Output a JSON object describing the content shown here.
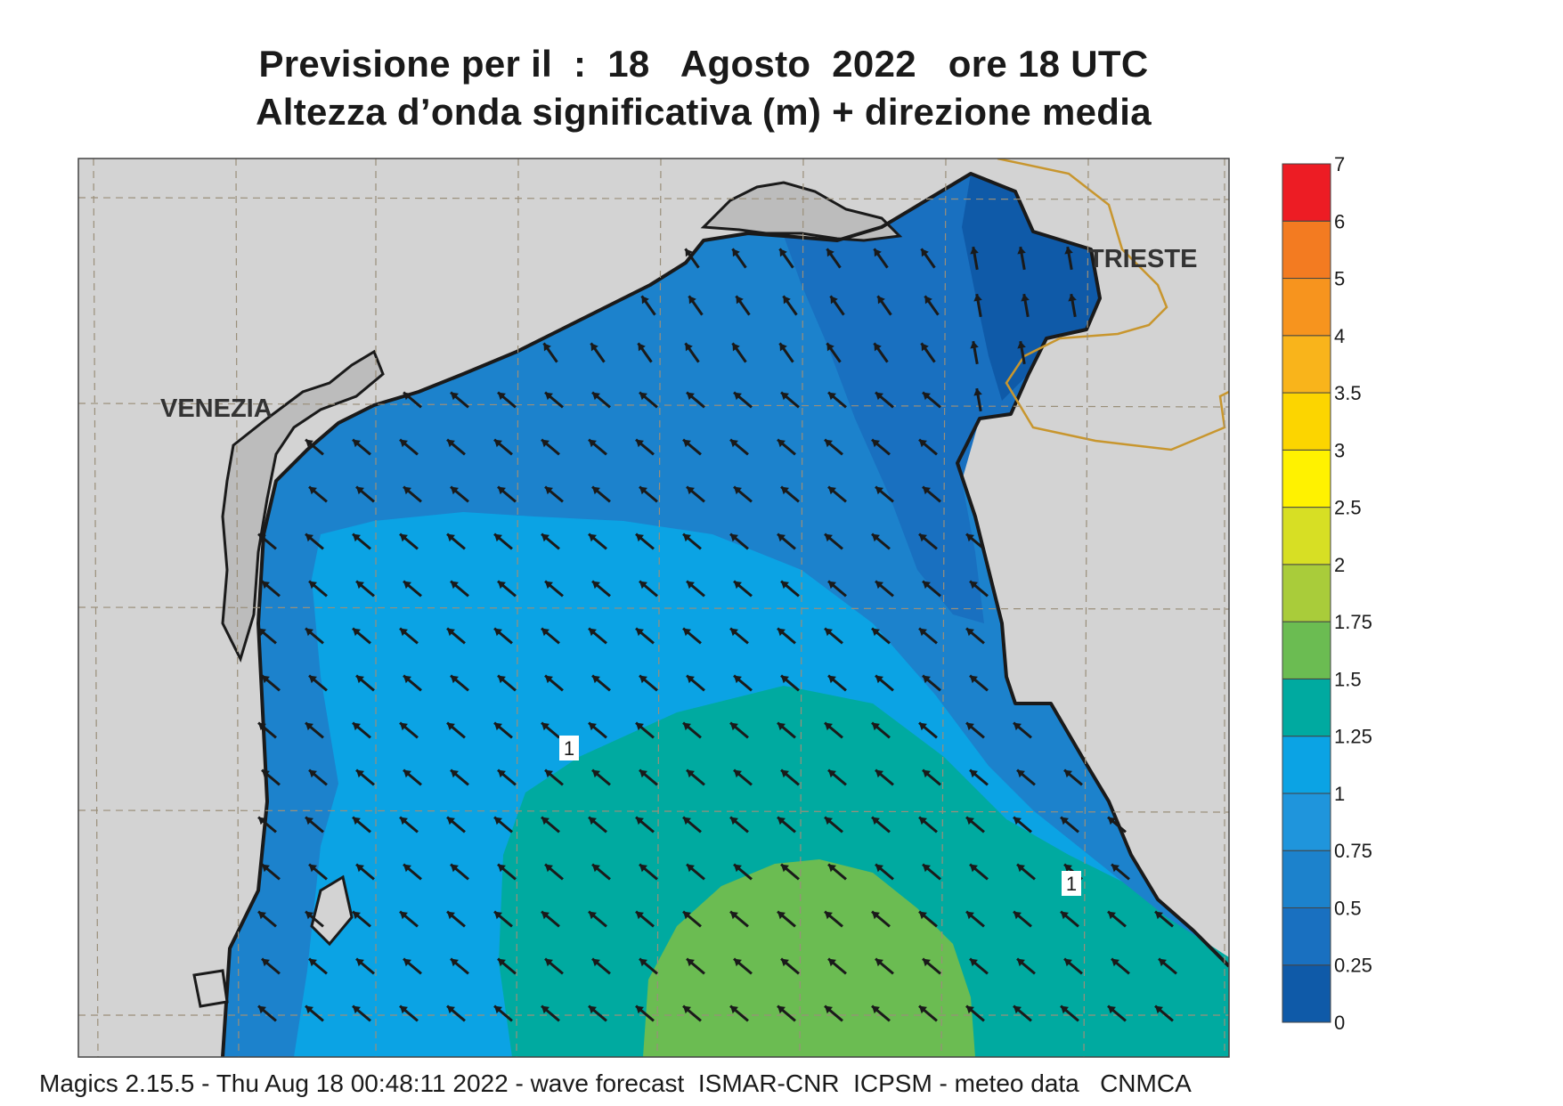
{
  "title": {
    "line1": "Previsione per il  :  18   Agosto  2022   ore 18 UTC",
    "line2": "Altezza d’onda significativa (m) + direzione media"
  },
  "map": {
    "cities": [
      {
        "name": "VENEZIA"
      },
      {
        "name": "TRIESTE"
      }
    ],
    "contour_labels": [
      "1",
      "1"
    ],
    "colors": {
      "land": "#d3d3d3",
      "coast": "#1a1a1a",
      "border": "#c8962e",
      "grid": "#9a8f7a",
      "arrow": "#1a1a1a"
    },
    "wave_direction": "arrows pointing toward north-west"
  },
  "colorbar": {
    "levels": [
      {
        "label": "0",
        "color": "#0f5aa8"
      },
      {
        "label": "0.25",
        "color": "#1970c0"
      },
      {
        "label": "0.5",
        "color": "#1c82cc"
      },
      {
        "label": "0.75",
        "color": "#1f95dc"
      },
      {
        "label": "1",
        "color": "#0ba3e4"
      },
      {
        "label": "1.25",
        "color": "#00aaa0"
      },
      {
        "label": "1.5",
        "color": "#6bbc52"
      },
      {
        "label": "1.75",
        "color": "#a9cc3a"
      },
      {
        "label": "2",
        "color": "#d7df24"
      },
      {
        "label": "2.5",
        "color": "#fff200"
      },
      {
        "label": "3",
        "color": "#fcd500"
      },
      {
        "label": "3.5",
        "color": "#f9b41b"
      },
      {
        "label": "4",
        "color": "#f7941e"
      },
      {
        "label": "5",
        "color": "#f37b21"
      },
      {
        "label": "6",
        "color": "#ed1c24"
      },
      {
        "label": "7",
        "color": "#ec1266"
      }
    ]
  },
  "footer": "Magics 2.15.5 - Thu Aug 18 00:48:11 2022 - wave forecast  ISMAR-CNR  ICPSM - meteo data   CNMCA"
}
